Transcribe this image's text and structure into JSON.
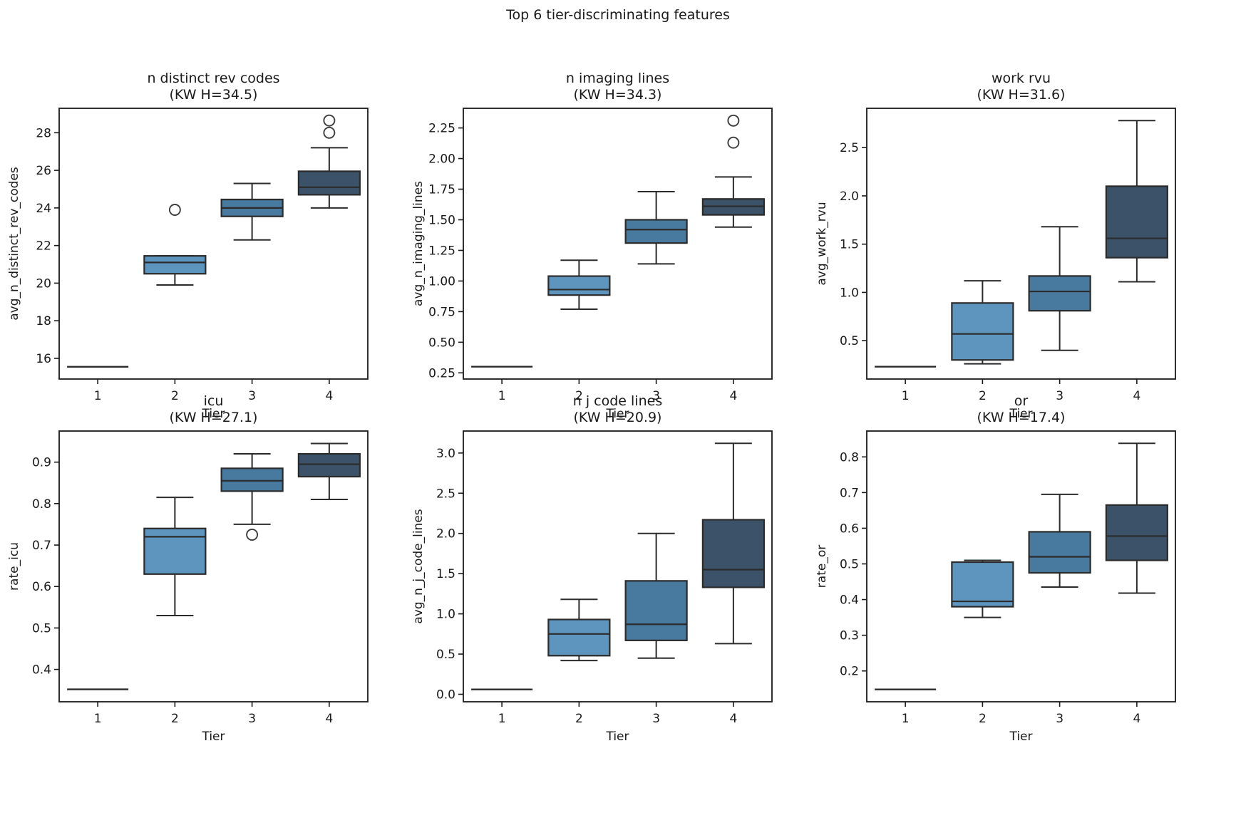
{
  "figure": {
    "title": "Top 6 tier-discriminating features",
    "background": "#ffffff"
  },
  "palette": {
    "tier_colors": [
      "#7FB2D5",
      "#5D95BE",
      "#48799F",
      "#3B5268"
    ],
    "box_edge_color": "#2b2b2b",
    "spine_color": "#1a1a1a",
    "flier_color": "#3d3d3d",
    "text_color": "#1a1a1a"
  },
  "chart_data": [
    {
      "type": "box",
      "title": "n distinct rev codes",
      "subtitle": "(KW H=34.5)",
      "xlabel": "Tier",
      "ylabel": "avg_n_distinct_rev_codes",
      "categories": [
        "1",
        "2",
        "3",
        "4"
      ],
      "ylim": [
        14.9,
        29.3
      ],
      "yticks": [
        16,
        18,
        20,
        22,
        24,
        26,
        28
      ],
      "ytick_labels": [
        "16",
        "18",
        "20",
        "22",
        "24",
        "26",
        "28"
      ],
      "grid": false,
      "boxes": [
        {
          "tier": "1",
          "whislo": 15.55,
          "q1": 15.55,
          "med": 15.55,
          "q3": 15.55,
          "whishi": 15.55,
          "fliers": []
        },
        {
          "tier": "2",
          "whislo": 19.9,
          "q1": 20.5,
          "med": 21.1,
          "q3": 21.45,
          "whishi": 21.45,
          "fliers": [
            23.9
          ]
        },
        {
          "tier": "3",
          "whislo": 22.3,
          "q1": 23.55,
          "med": 24.0,
          "q3": 24.45,
          "whishi": 25.3,
          "fliers": []
        },
        {
          "tier": "4",
          "whislo": 24.0,
          "q1": 24.7,
          "med": 25.1,
          "q3": 25.95,
          "whishi": 27.2,
          "fliers": [
            28.0,
            28.65
          ]
        }
      ]
    },
    {
      "type": "box",
      "title": "n imaging lines",
      "subtitle": "(KW H=34.3)",
      "xlabel": "Tier",
      "ylabel": "avg_n_imaging_lines",
      "categories": [
        "1",
        "2",
        "3",
        "4"
      ],
      "ylim": [
        0.1995,
        2.4105
      ],
      "yticks": [
        0.25,
        0.5,
        0.75,
        1.0,
        1.25,
        1.5,
        1.75,
        2.0,
        2.25
      ],
      "ytick_labels": [
        "0.25",
        "0.50",
        "0.75",
        "1.00",
        "1.25",
        "1.50",
        "1.75",
        "2.00",
        "2.25"
      ],
      "grid": false,
      "boxes": [
        {
          "tier": "1",
          "whislo": 0.3,
          "q1": 0.3,
          "med": 0.3,
          "q3": 0.3,
          "whishi": 0.3,
          "fliers": []
        },
        {
          "tier": "2",
          "whislo": 0.77,
          "q1": 0.885,
          "med": 0.93,
          "q3": 1.04,
          "whishi": 1.17,
          "fliers": []
        },
        {
          "tier": "3",
          "whislo": 1.14,
          "q1": 1.31,
          "med": 1.42,
          "q3": 1.5,
          "whishi": 1.73,
          "fliers": []
        },
        {
          "tier": "4",
          "whislo": 1.44,
          "q1": 1.54,
          "med": 1.61,
          "q3": 1.67,
          "whishi": 1.85,
          "fliers": [
            2.13,
            2.31
          ]
        }
      ]
    },
    {
      "type": "box",
      "title": "work rvu",
      "subtitle": "(KW H=31.6)",
      "xlabel": "Tier",
      "ylabel": "avg_work_rvu",
      "categories": [
        "1",
        "2",
        "3",
        "4"
      ],
      "ylim": [
        0.1025,
        2.9075
      ],
      "yticks": [
        0.5,
        1.0,
        1.5,
        2.0,
        2.5
      ],
      "ytick_labels": [
        "0.5",
        "1.0",
        "1.5",
        "2.0",
        "2.5"
      ],
      "grid": false,
      "boxes": [
        {
          "tier": "1",
          "whislo": 0.23,
          "q1": 0.23,
          "med": 0.23,
          "q3": 0.23,
          "whishi": 0.23,
          "fliers": []
        },
        {
          "tier": "2",
          "whislo": 0.26,
          "q1": 0.3,
          "med": 0.57,
          "q3": 0.89,
          "whishi": 1.12,
          "fliers": []
        },
        {
          "tier": "3",
          "whislo": 0.4,
          "q1": 0.81,
          "med": 1.01,
          "q3": 1.17,
          "whishi": 1.68,
          "fliers": []
        },
        {
          "tier": "4",
          "whislo": 1.11,
          "q1": 1.36,
          "med": 1.56,
          "q3": 2.1,
          "whishi": 2.78,
          "fliers": []
        }
      ]
    },
    {
      "type": "box",
      "title": "icu",
      "subtitle": "(KW H=27.1)",
      "xlabel": "Tier",
      "ylabel": "rate_icu",
      "categories": [
        "1",
        "2",
        "3",
        "4"
      ],
      "ylim": [
        0.322,
        0.975
      ],
      "yticks": [
        0.4,
        0.5,
        0.6,
        0.7,
        0.8,
        0.9
      ],
      "ytick_labels": [
        "0.4",
        "0.5",
        "0.6",
        "0.7",
        "0.8",
        "0.9"
      ],
      "grid": false,
      "boxes": [
        {
          "tier": "1",
          "whislo": 0.352,
          "q1": 0.352,
          "med": 0.352,
          "q3": 0.352,
          "whishi": 0.352,
          "fliers": []
        },
        {
          "tier": "2",
          "whislo": 0.53,
          "q1": 0.63,
          "med": 0.72,
          "q3": 0.74,
          "whishi": 0.815,
          "fliers": []
        },
        {
          "tier": "3",
          "whislo": 0.75,
          "q1": 0.83,
          "med": 0.855,
          "q3": 0.885,
          "whishi": 0.92,
          "fliers": [
            0.725
          ]
        },
        {
          "tier": "4",
          "whislo": 0.81,
          "q1": 0.865,
          "med": 0.895,
          "q3": 0.92,
          "whishi": 0.945,
          "fliers": []
        }
      ]
    },
    {
      "type": "box",
      "title": "n j code lines",
      "subtitle": "(KW H=20.9)",
      "xlabel": "Tier",
      "ylabel": "avg_n_j_code_lines",
      "categories": [
        "1",
        "2",
        "3",
        "4"
      ],
      "ylim": [
        -0.093,
        3.273
      ],
      "yticks": [
        0.0,
        0.5,
        1.0,
        1.5,
        2.0,
        2.5,
        3.0
      ],
      "ytick_labels": [
        "0.0",
        "0.5",
        "1.0",
        "1.5",
        "2.0",
        "2.5",
        "3.0"
      ],
      "grid": false,
      "boxes": [
        {
          "tier": "1",
          "whislo": 0.06,
          "q1": 0.06,
          "med": 0.06,
          "q3": 0.06,
          "whishi": 0.06,
          "fliers": []
        },
        {
          "tier": "2",
          "whislo": 0.42,
          "q1": 0.48,
          "med": 0.75,
          "q3": 0.93,
          "whishi": 1.18,
          "fliers": []
        },
        {
          "tier": "3",
          "whislo": 0.45,
          "q1": 0.67,
          "med": 0.87,
          "q3": 1.41,
          "whishi": 2.0,
          "fliers": []
        },
        {
          "tier": "4",
          "whislo": 0.63,
          "q1": 1.33,
          "med": 1.55,
          "q3": 2.17,
          "whishi": 3.12,
          "fliers": []
        }
      ]
    },
    {
      "type": "box",
      "title": "or",
      "subtitle": "(KW H=17.4)",
      "xlabel": "Tier",
      "ylabel": "rate_or",
      "categories": [
        "1",
        "2",
        "3",
        "4"
      ],
      "ylim": [
        0.1135,
        0.8725
      ],
      "yticks": [
        0.2,
        0.3,
        0.4,
        0.5,
        0.6,
        0.7,
        0.8
      ],
      "ytick_labels": [
        "0.2",
        "0.3",
        "0.4",
        "0.5",
        "0.6",
        "0.7",
        "0.8"
      ],
      "grid": false,
      "boxes": [
        {
          "tier": "1",
          "whislo": 0.148,
          "q1": 0.148,
          "med": 0.148,
          "q3": 0.148,
          "whishi": 0.148,
          "fliers": []
        },
        {
          "tier": "2",
          "whislo": 0.35,
          "q1": 0.38,
          "med": 0.395,
          "q3": 0.505,
          "whishi": 0.51,
          "fliers": []
        },
        {
          "tier": "3",
          "whislo": 0.435,
          "q1": 0.475,
          "med": 0.52,
          "q3": 0.59,
          "whishi": 0.695,
          "fliers": []
        },
        {
          "tier": "4",
          "whislo": 0.418,
          "q1": 0.51,
          "med": 0.578,
          "q3": 0.665,
          "whishi": 0.838,
          "fliers": []
        }
      ]
    }
  ]
}
